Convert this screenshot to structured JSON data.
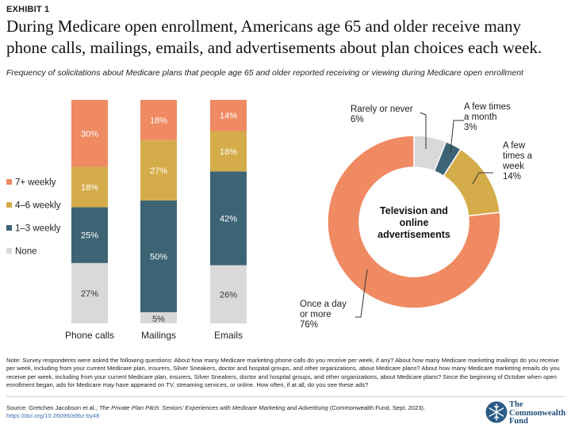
{
  "header": {
    "exhibit": "EXHIBIT 1",
    "title": "During Medicare open enrollment, Americans age 65 and older receive many phone calls, mailings, emails, and advertisements about plan choices each week.",
    "subtitle": "Frequency of solicitations about Medicare plans that people age 65 and older reported receiving or viewing during Medicare open enrollment"
  },
  "chart_data": [
    {
      "type": "bar",
      "stacked": true,
      "categories": [
        "Phone calls",
        "Mailings",
        "Emails"
      ],
      "series": [
        {
          "name": "None",
          "color": "#d9d9d9",
          "values": [
            27,
            5,
            26
          ],
          "labels": [
            "27%",
            "5%",
            "26%"
          ]
        },
        {
          "name": "1–3 weekly",
          "color": "#3d6475",
          "values": [
            25,
            50,
            42
          ],
          "labels": [
            "25%",
            "50%",
            "42%"
          ]
        },
        {
          "name": "4–6 weekly",
          "color": "#d5ac4a",
          "values": [
            18,
            27,
            18
          ],
          "labels": [
            "18%",
            "27%",
            "18%"
          ]
        },
        {
          "name": "7+ weekly",
          "color": "#ef8a62",
          "values": [
            30,
            18,
            14
          ],
          "labels": [
            "30%",
            "18%",
            "14%"
          ]
        }
      ],
      "legend": [
        "7+ weekly",
        "4–6 weekly",
        "1–3 weekly",
        "None"
      ],
      "ylim": [
        0,
        100
      ]
    },
    {
      "type": "pie",
      "donut": true,
      "center_label": "Television and online advertisements",
      "slices": [
        {
          "name": "Rarely or never",
          "value": 6,
          "label": "6%",
          "color": "#d9d9d9"
        },
        {
          "name": "A few times a month",
          "value": 3,
          "label": "3%",
          "color": "#3d6475"
        },
        {
          "name": "A few times a week",
          "value": 14,
          "label": "14%",
          "color": "#d5ac4a"
        },
        {
          "name": "Once a day or more",
          "value": 76,
          "label": "76%",
          "color": "#ef8a62"
        }
      ]
    }
  ],
  "donut_labels": {
    "rarely": [
      "Rarely or never",
      "6%"
    ],
    "month": [
      "A few times",
      "a month",
      "3%"
    ],
    "week": [
      "A few",
      "times a",
      "week",
      "14%"
    ],
    "daily": [
      "Once a day",
      "or more",
      "76%"
    ]
  },
  "footer": {
    "note": "Note: Survey respondents were asked the following questions: About how many Medicare marketing phone calls do you receive per week, if any? About how many Medicare marketing mailings do you receive per week, including from your current Medicare plan, insurers, Silver Sneakers, doctor and hospital groups, and other organizations, about Medicare plans? About how many Medicare marketing emails do you receive per week, including from your current Medicare plan, insurers, Silver Sneakers, doctor and hospital groups, and other organizations, about Medicare plans? Since the beginning of October when open enrollment began, ads for Medicare may have appeared on TV, streaming services, or online. How often, if at all, do you see these ads?",
    "source_prefix": "Source: Gretchen Jacobson et al., ",
    "source_title": "The Private Plan Pitch: Seniors’ Experiences with Medicare Marketing and Advertising",
    "source_suffix": " (Commonwealth Fund, Sept. 2023).",
    "doi": "https://doi.org/10.26099/a9bz-by48",
    "logo": [
      "The",
      "Commonwealth",
      "Fund"
    ]
  }
}
